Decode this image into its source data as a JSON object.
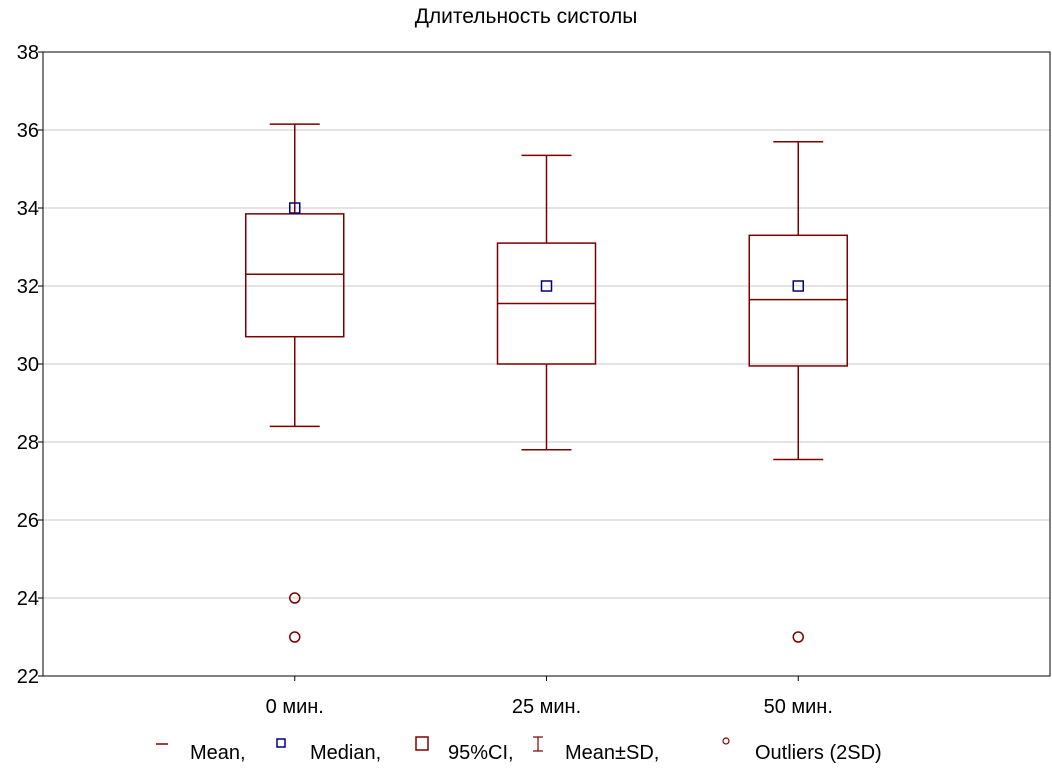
{
  "chart_data": {
    "type": "boxplot",
    "title": "Длительность систолы",
    "xlabel": "",
    "ylabel": "",
    "ylim": [
      22,
      38
    ],
    "yticks": [
      22,
      24,
      26,
      28,
      30,
      32,
      34,
      36,
      38
    ],
    "grid": true,
    "categories": [
      "0 мин.",
      "25 мин.",
      "50 мин."
    ],
    "series": [
      {
        "category": "0 мин.",
        "mean": 32.3,
        "median": 34.0,
        "ci_low": 30.7,
        "ci_high": 33.85,
        "sd_low": 28.4,
        "sd_high": 36.15,
        "outliers": [
          24.0,
          23.0
        ]
      },
      {
        "category": "25 мин.",
        "mean": 31.55,
        "median": 32.0,
        "ci_low": 30.0,
        "ci_high": 33.1,
        "sd_low": 27.8,
        "sd_high": 35.35,
        "outliers": []
      },
      {
        "category": "50 мин.",
        "mean": 31.65,
        "median": 32.0,
        "ci_low": 29.95,
        "ci_high": 33.3,
        "sd_low": 27.55,
        "sd_high": 35.7,
        "outliers": [
          23.0
        ]
      }
    ],
    "legend": {
      "placement": "bottom",
      "items": [
        "Mean,",
        "Median,",
        "95%CI,",
        "Mean±SD,",
        "Outliers (2SD)"
      ]
    },
    "colors": {
      "box": "#7b0000",
      "median": "#00007b",
      "grid": "#c8c8c8",
      "axis": "#000000"
    }
  }
}
